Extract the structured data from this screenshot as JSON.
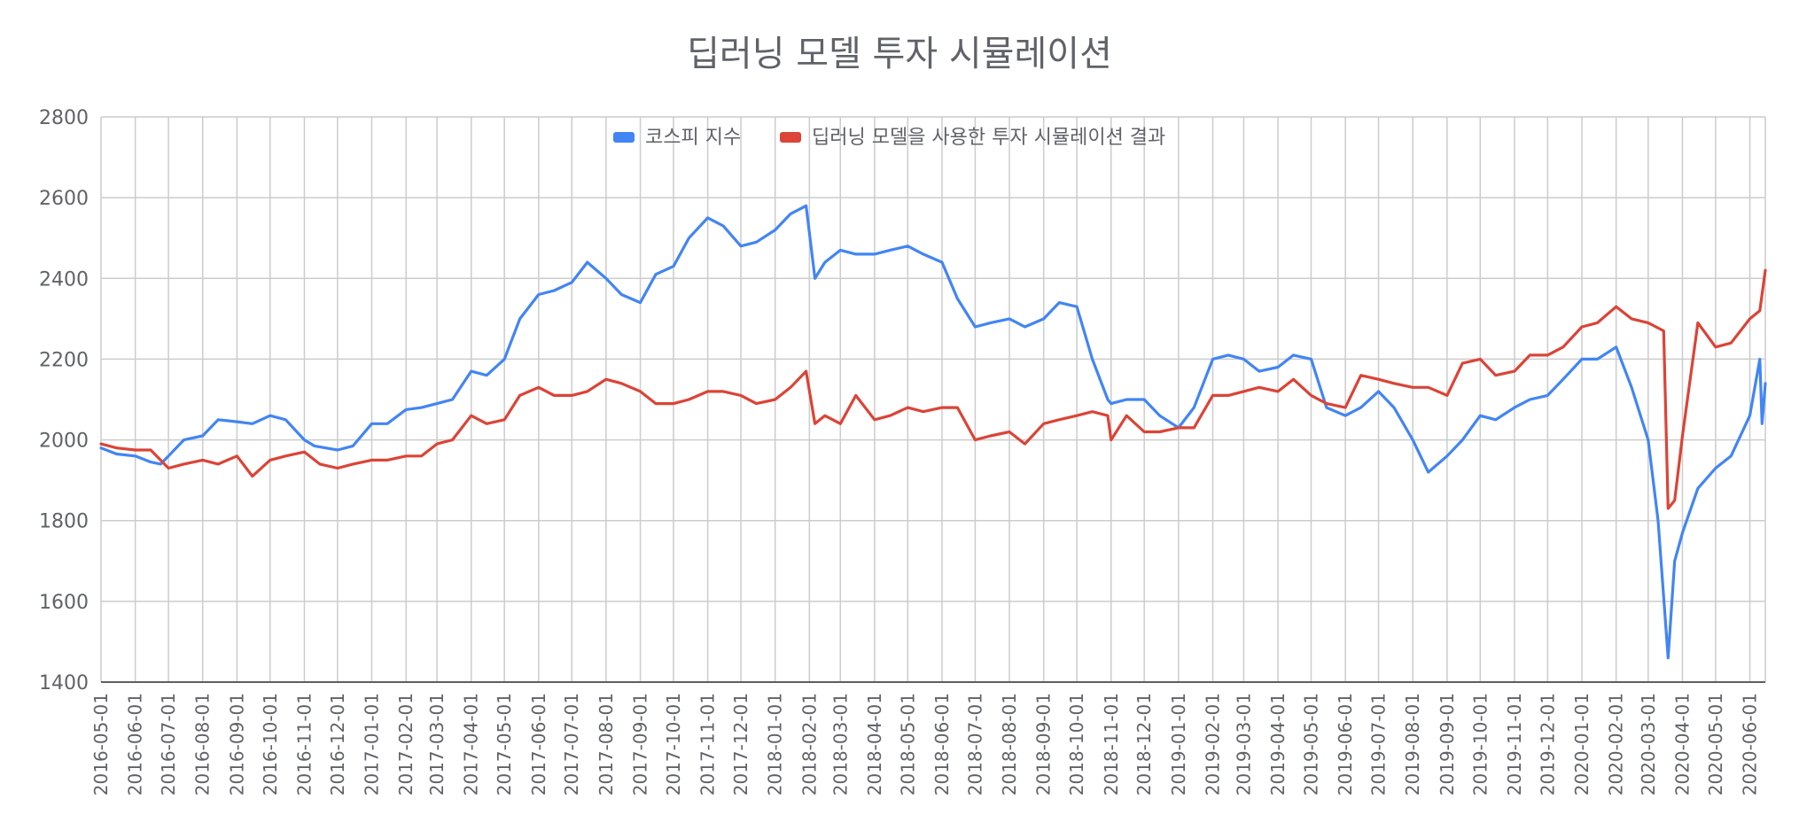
{
  "chart_data": {
    "type": "line",
    "title": "딥러닝 모델 투자 시뮬레이션",
    "xlabel": "",
    "ylabel": "",
    "ylim": [
      1400,
      2800
    ],
    "yticks": [
      "1400",
      "1600",
      "1800",
      "2000",
      "2200",
      "2400",
      "2600",
      "2800"
    ],
    "xticks": [
      "2016-05-01",
      "2016-06-01",
      "2016-07-01",
      "2016-08-01",
      "2016-09-01",
      "2016-10-01",
      "2016-11-01",
      "2016-12-01",
      "2017-01-01",
      "2017-02-01",
      "2017-03-01",
      "2017-04-01",
      "2017-05-01",
      "2017-06-01",
      "2017-07-01",
      "2017-08-01",
      "2017-09-01",
      "2017-10-01",
      "2017-11-01",
      "2017-12-01",
      "2018-01-01",
      "2018-02-01",
      "2018-03-01",
      "2018-04-01",
      "2018-05-01",
      "2018-06-01",
      "2018-07-01",
      "2018-08-01",
      "2018-09-01",
      "2018-10-01",
      "2018-11-01",
      "2018-12-01",
      "2019-01-01",
      "2019-02-01",
      "2019-03-01",
      "2019-04-01",
      "2019-05-01",
      "2019-06-01",
      "2019-07-01",
      "2019-08-01",
      "2019-09-01",
      "2019-10-01",
      "2019-11-01",
      "2019-12-01",
      "2020-01-01",
      "2020-02-01",
      "2020-03-01",
      "2020-04-01",
      "2020-05-01",
      "2020-06-01"
    ],
    "grid": true,
    "legend_position": "top",
    "series": [
      {
        "name": "코스피 지수",
        "color": "#4285f4",
        "x": [
          "2016-05-01",
          "2016-05-15",
          "2016-06-01",
          "2016-06-15",
          "2016-06-24",
          "2016-07-01",
          "2016-07-15",
          "2016-08-01",
          "2016-08-15",
          "2016-09-01",
          "2016-09-15",
          "2016-10-01",
          "2016-10-15",
          "2016-11-01",
          "2016-11-10",
          "2016-12-01",
          "2016-12-15",
          "2017-01-01",
          "2017-01-15",
          "2017-02-01",
          "2017-02-15",
          "2017-03-01",
          "2017-03-15",
          "2017-04-01",
          "2017-04-15",
          "2017-05-01",
          "2017-05-15",
          "2017-06-01",
          "2017-06-15",
          "2017-07-01",
          "2017-07-15",
          "2017-08-01",
          "2017-08-15",
          "2017-09-01",
          "2017-09-15",
          "2017-10-01",
          "2017-10-15",
          "2017-11-01",
          "2017-11-15",
          "2017-12-01",
          "2017-12-15",
          "2018-01-01",
          "2018-01-15",
          "2018-01-29",
          "2018-02-06",
          "2018-02-15",
          "2018-03-01",
          "2018-03-15",
          "2018-04-01",
          "2018-04-15",
          "2018-05-01",
          "2018-05-15",
          "2018-06-01",
          "2018-06-15",
          "2018-07-01",
          "2018-07-15",
          "2018-08-01",
          "2018-08-15",
          "2018-09-01",
          "2018-09-15",
          "2018-10-01",
          "2018-10-15",
          "2018-10-29",
          "2018-11-01",
          "2018-11-15",
          "2018-12-01",
          "2018-12-15",
          "2019-01-01",
          "2019-01-15",
          "2019-02-01",
          "2019-02-15",
          "2019-03-01",
          "2019-03-15",
          "2019-04-01",
          "2019-04-15",
          "2019-05-01",
          "2019-05-15",
          "2019-06-01",
          "2019-06-15",
          "2019-07-01",
          "2019-07-15",
          "2019-08-01",
          "2019-08-15",
          "2019-09-01",
          "2019-09-15",
          "2019-10-01",
          "2019-10-15",
          "2019-11-01",
          "2019-11-15",
          "2019-12-01",
          "2019-12-15",
          "2020-01-01",
          "2020-01-15",
          "2020-02-01",
          "2020-02-15",
          "2020-03-01",
          "2020-03-10",
          "2020-03-19",
          "2020-03-25",
          "2020-04-01",
          "2020-04-15",
          "2020-05-01",
          "2020-05-15",
          "2020-06-01",
          "2020-06-10",
          "2020-06-12",
          "2020-06-15"
        ],
        "values": [
          1980,
          1965,
          1960,
          1945,
          1940,
          1960,
          2000,
          2010,
          2050,
          2045,
          2040,
          2060,
          2050,
          2000,
          1985,
          1975,
          1985,
          2040,
          2040,
          2075,
          2080,
          2090,
          2100,
          2170,
          2160,
          2200,
          2300,
          2360,
          2370,
          2390,
          2440,
          2400,
          2360,
          2340,
          2410,
          2430,
          2500,
          2550,
          2530,
          2480,
          2490,
          2520,
          2560,
          2580,
          2400,
          2440,
          2470,
          2460,
          2460,
          2470,
          2480,
          2460,
          2440,
          2350,
          2280,
          2290,
          2300,
          2280,
          2300,
          2340,
          2330,
          2200,
          2100,
          2090,
          2100,
          2100,
          2060,
          2030,
          2080,
          2200,
          2210,
          2200,
          2170,
          2180,
          2210,
          2200,
          2080,
          2060,
          2080,
          2120,
          2080,
          2000,
          1920,
          1960,
          2000,
          2060,
          2050,
          2080,
          2100,
          2110,
          2150,
          2200,
          2200,
          2230,
          2130,
          2000,
          1800,
          1460,
          1700,
          1770,
          1880,
          1930,
          1960,
          2060,
          2200,
          2040,
          2140
        ]
      },
      {
        "name": "딥러닝 모델을 사용한 투자 시뮬레이션 결과",
        "color": "#db4437",
        "x": [
          "2016-05-01",
          "2016-05-15",
          "2016-06-01",
          "2016-06-15",
          "2016-07-01",
          "2016-07-15",
          "2016-08-01",
          "2016-08-15",
          "2016-09-01",
          "2016-09-15",
          "2016-10-01",
          "2016-10-15",
          "2016-11-01",
          "2016-11-15",
          "2016-12-01",
          "2016-12-15",
          "2017-01-01",
          "2017-01-15",
          "2017-02-01",
          "2017-02-15",
          "2017-03-01",
          "2017-03-15",
          "2017-04-01",
          "2017-04-15",
          "2017-05-01",
          "2017-05-15",
          "2017-06-01",
          "2017-06-15",
          "2017-07-01",
          "2017-07-15",
          "2017-08-01",
          "2017-08-15",
          "2017-09-01",
          "2017-09-15",
          "2017-10-01",
          "2017-10-15",
          "2017-11-01",
          "2017-11-15",
          "2017-12-01",
          "2017-12-15",
          "2018-01-01",
          "2018-01-15",
          "2018-01-29",
          "2018-02-06",
          "2018-02-15",
          "2018-03-01",
          "2018-03-15",
          "2018-04-01",
          "2018-04-15",
          "2018-05-01",
          "2018-05-15",
          "2018-06-01",
          "2018-06-15",
          "2018-07-01",
          "2018-07-15",
          "2018-08-01",
          "2018-08-15",
          "2018-09-01",
          "2018-09-15",
          "2018-10-01",
          "2018-10-15",
          "2018-10-29",
          "2018-11-01",
          "2018-11-15",
          "2018-12-01",
          "2018-12-15",
          "2019-01-01",
          "2019-01-15",
          "2019-02-01",
          "2019-02-15",
          "2019-03-01",
          "2019-03-15",
          "2019-04-01",
          "2019-04-15",
          "2019-05-01",
          "2019-05-15",
          "2019-06-01",
          "2019-06-15",
          "2019-07-01",
          "2019-07-15",
          "2019-08-01",
          "2019-08-15",
          "2019-09-01",
          "2019-09-15",
          "2019-10-01",
          "2019-10-15",
          "2019-11-01",
          "2019-11-15",
          "2019-12-01",
          "2019-12-15",
          "2020-01-01",
          "2020-01-15",
          "2020-02-01",
          "2020-02-15",
          "2020-03-01",
          "2020-03-15",
          "2020-03-19",
          "2020-03-25",
          "2020-04-01",
          "2020-04-15",
          "2020-05-01",
          "2020-05-15",
          "2020-06-01",
          "2020-06-10",
          "2020-06-15"
        ],
        "values": [
          1990,
          1980,
          1975,
          1975,
          1930,
          1940,
          1950,
          1940,
          1960,
          1910,
          1950,
          1960,
          1970,
          1940,
          1930,
          1940,
          1950,
          1950,
          1960,
          1960,
          1990,
          2000,
          2060,
          2040,
          2050,
          2110,
          2130,
          2110,
          2110,
          2120,
          2150,
          2140,
          2120,
          2090,
          2090,
          2100,
          2120,
          2120,
          2110,
          2090,
          2100,
          2130,
          2170,
          2040,
          2060,
          2040,
          2110,
          2050,
          2060,
          2080,
          2070,
          2080,
          2080,
          2000,
          2010,
          2020,
          1990,
          2040,
          2050,
          2060,
          2070,
          2060,
          2000,
          2060,
          2020,
          2020,
          2030,
          2030,
          2110,
          2110,
          2120,
          2130,
          2120,
          2150,
          2110,
          2090,
          2080,
          2160,
          2150,
          2140,
          2130,
          2130,
          2110,
          2190,
          2200,
          2160,
          2170,
          2210,
          2210,
          2230,
          2280,
          2290,
          2330,
          2300,
          2290,
          2270,
          1830,
          1850,
          2010,
          2290,
          2230,
          2240,
          2300,
          2320,
          2420
        ]
      }
    ]
  }
}
